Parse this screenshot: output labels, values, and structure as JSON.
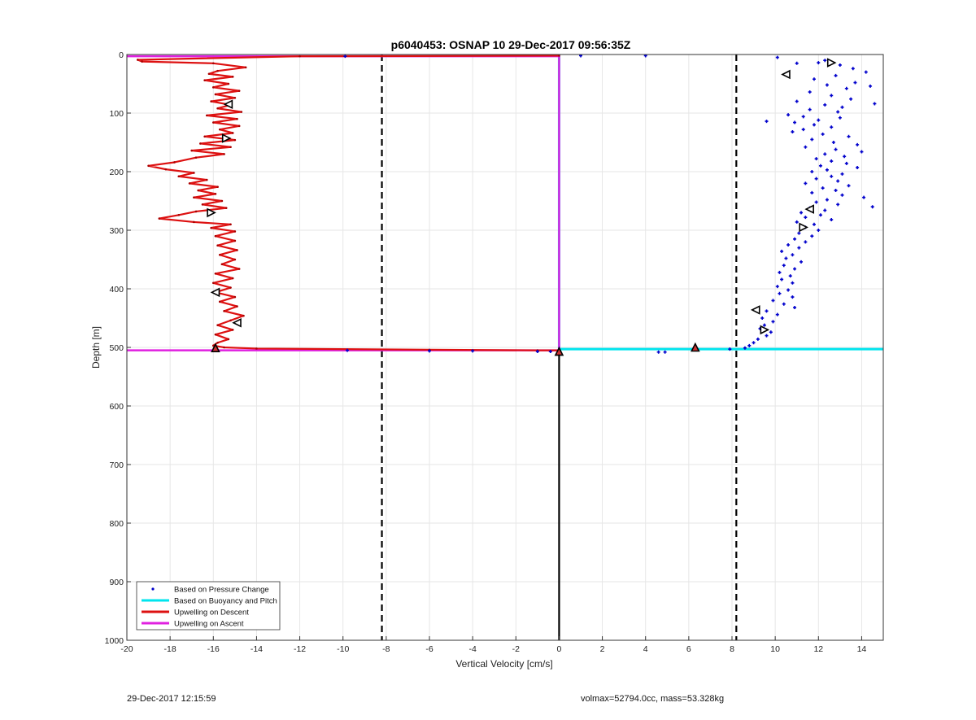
{
  "chart_data": {
    "type": "scatter",
    "title": "p6040453: OSNAP 10 29-Dec-2017 09:56:35Z",
    "xlabel": "Vertical Velocity [cm/s]",
    "ylabel": "Depth [m]",
    "xlim": [
      -20,
      15
    ],
    "ylim": [
      0,
      1000
    ],
    "y_reversed": true,
    "grid": true,
    "x_ticks": [
      -20,
      -18,
      -16,
      -14,
      -12,
      -10,
      -8,
      -6,
      -4,
      -2,
      0,
      2,
      4,
      6,
      8,
      10,
      12,
      14
    ],
    "y_ticks": [
      0,
      100,
      200,
      300,
      400,
      500,
      600,
      700,
      800,
      900,
      1000
    ],
    "legend_position": "bottom-left",
    "series": [
      {
        "name": "Based on Pressure Change",
        "kind": "points",
        "color": "#0000cc",
        "points": [
          [
            10.1,
            5
          ],
          [
            12.3,
            10
          ],
          [
            13.0,
            18
          ],
          [
            12.0,
            14
          ],
          [
            11.0,
            15
          ],
          [
            13.6,
            24
          ],
          [
            14.2,
            30
          ],
          [
            12.8,
            36
          ],
          [
            11.8,
            42
          ],
          [
            13.7,
            48
          ],
          [
            12.4,
            52
          ],
          [
            14.4,
            54
          ],
          [
            13.3,
            58
          ],
          [
            11.6,
            64
          ],
          [
            12.6,
            70
          ],
          [
            13.5,
            76
          ],
          [
            11.0,
            80
          ],
          [
            12.3,
            86
          ],
          [
            14.6,
            84
          ],
          [
            13.1,
            90
          ],
          [
            11.6,
            94
          ],
          [
            12.9,
            98
          ],
          [
            10.6,
            103
          ],
          [
            11.3,
            106
          ],
          [
            13.0,
            108
          ],
          [
            12.0,
            112
          ],
          [
            10.9,
            116
          ],
          [
            9.6,
            114
          ],
          [
            11.8,
            120
          ],
          [
            12.6,
            124
          ],
          [
            11.3,
            128
          ],
          [
            10.8,
            132
          ],
          [
            12.2,
            136
          ],
          [
            13.4,
            140
          ],
          [
            11.7,
            145
          ],
          [
            12.7,
            150
          ],
          [
            13.8,
            154
          ],
          [
            11.4,
            158
          ],
          [
            12.8,
            162
          ],
          [
            14.0,
            166
          ],
          [
            12.3,
            170
          ],
          [
            13.2,
            174
          ],
          [
            11.9,
            178
          ],
          [
            12.6,
            182
          ],
          [
            13.3,
            186
          ],
          [
            12.1,
            190
          ],
          [
            13.8,
            193
          ],
          [
            12.4,
            197
          ],
          [
            11.7,
            200
          ],
          [
            13.1,
            204
          ],
          [
            12.6,
            208
          ],
          [
            11.9,
            212
          ],
          [
            12.9,
            216
          ],
          [
            11.4,
            220
          ],
          [
            13.4,
            224
          ],
          [
            12.2,
            228
          ],
          [
            12.8,
            232
          ],
          [
            11.7,
            236
          ],
          [
            13.1,
            240
          ],
          [
            14.1,
            244
          ],
          [
            12.4,
            248
          ],
          [
            11.9,
            252
          ],
          [
            14.5,
            260
          ],
          [
            12.9,
            256
          ],
          [
            11.6,
            262
          ],
          [
            12.3,
            266
          ],
          [
            11.2,
            270
          ],
          [
            12.1,
            274
          ],
          [
            11.4,
            278
          ],
          [
            12.6,
            282
          ],
          [
            11.0,
            286
          ],
          [
            11.8,
            290
          ],
          [
            11.4,
            295
          ],
          [
            12.0,
            300
          ],
          [
            11.1,
            305
          ],
          [
            11.7,
            310
          ],
          [
            10.9,
            315
          ],
          [
            11.4,
            320
          ],
          [
            10.6,
            325
          ],
          [
            11.1,
            330
          ],
          [
            10.3,
            336
          ],
          [
            10.8,
            342
          ],
          [
            10.5,
            348
          ],
          [
            11.2,
            354
          ],
          [
            10.4,
            360
          ],
          [
            10.9,
            366
          ],
          [
            10.2,
            372
          ],
          [
            10.7,
            378
          ],
          [
            10.3,
            384
          ],
          [
            10.8,
            390
          ],
          [
            10.1,
            396
          ],
          [
            10.6,
            402
          ],
          [
            10.2,
            408
          ],
          [
            10.8,
            414
          ],
          [
            9.9,
            420
          ],
          [
            10.4,
            426
          ],
          [
            10.9,
            432
          ],
          [
            9.6,
            438
          ],
          [
            10.1,
            444
          ],
          [
            9.4,
            450
          ],
          [
            9.9,
            456
          ],
          [
            9.5,
            462
          ],
          [
            9.3,
            468
          ],
          [
            9.8,
            474
          ],
          [
            9.6,
            480
          ],
          [
            9.2,
            486
          ],
          [
            9.0,
            492
          ],
          [
            8.8,
            497
          ],
          [
            8.6,
            501
          ],
          [
            1.0,
            2
          ],
          [
            4.0,
            2
          ],
          [
            -9.9,
            3
          ],
          [
            -9.8,
            505
          ],
          [
            -6.0,
            506
          ],
          [
            -4.0,
            506
          ],
          [
            -1.0,
            507
          ],
          [
            -0.4,
            507
          ],
          [
            4.6,
            508
          ],
          [
            4.9,
            508
          ],
          [
            7.9,
            503
          ]
        ]
      },
      {
        "name": "Based on Buoyancy and Pitch",
        "kind": "line",
        "color": "#00e5ee",
        "segments": [
          [
            [
              0,
              0
            ],
            [
              0,
              503
            ]
          ],
          [
            [
              0,
              503
            ],
            [
              15,
              503
            ]
          ]
        ]
      },
      {
        "name": "Upwelling on Descent",
        "kind": "line",
        "color": "#dd1111",
        "points": [
          [
            0,
            2
          ],
          [
            -12,
            3
          ],
          [
            -19.5,
            9
          ],
          [
            -19.3,
            12
          ],
          [
            -16,
            15
          ],
          [
            -14.5,
            22
          ],
          [
            -15.8,
            28
          ],
          [
            -16.2,
            33
          ],
          [
            -15.1,
            38
          ],
          [
            -16.4,
            44
          ],
          [
            -15.3,
            50
          ],
          [
            -16.0,
            56
          ],
          [
            -14.8,
            62
          ],
          [
            -15.9,
            68
          ],
          [
            -15.0,
            74
          ],
          [
            -16.1,
            80
          ],
          [
            -15.2,
            86
          ],
          [
            -15.8,
            92
          ],
          [
            -14.7,
            98
          ],
          [
            -16.3,
            104
          ],
          [
            -14.9,
            110
          ],
          [
            -16.0,
            116
          ],
          [
            -14.8,
            122
          ],
          [
            -15.7,
            128
          ],
          [
            -15.1,
            134
          ],
          [
            -16.4,
            140
          ],
          [
            -15.0,
            146
          ],
          [
            -16.6,
            152
          ],
          [
            -15.2,
            158
          ],
          [
            -17.0,
            164
          ],
          [
            -15.5,
            170
          ],
          [
            -16.8,
            176
          ],
          [
            -17.8,
            184
          ],
          [
            -19.0,
            190
          ],
          [
            -18.2,
            196
          ],
          [
            -16.9,
            202
          ],
          [
            -17.6,
            208
          ],
          [
            -16.3,
            214
          ],
          [
            -17.1,
            220
          ],
          [
            -15.8,
            226
          ],
          [
            -16.7,
            232
          ],
          [
            -15.9,
            238
          ],
          [
            -16.9,
            244
          ],
          [
            -15.6,
            250
          ],
          [
            -16.5,
            256
          ],
          [
            -15.4,
            262
          ],
          [
            -16.8,
            268
          ],
          [
            -17.6,
            274
          ],
          [
            -18.5,
            280
          ],
          [
            -16.9,
            286
          ],
          [
            -15.2,
            290
          ],
          [
            -16.1,
            296
          ],
          [
            -15.0,
            302
          ],
          [
            -15.9,
            310
          ],
          [
            -15.0,
            318
          ],
          [
            -15.8,
            326
          ],
          [
            -14.9,
            334
          ],
          [
            -15.7,
            342
          ],
          [
            -15.0,
            350
          ],
          [
            -15.6,
            358
          ],
          [
            -14.8,
            366
          ],
          [
            -15.9,
            374
          ],
          [
            -15.1,
            382
          ],
          [
            -16.0,
            390
          ],
          [
            -15.2,
            398
          ],
          [
            -15.9,
            406
          ],
          [
            -15.0,
            414
          ],
          [
            -15.7,
            422
          ],
          [
            -14.9,
            430
          ],
          [
            -15.5,
            438
          ],
          [
            -14.6,
            446
          ],
          [
            -15.2,
            454
          ],
          [
            -15.8,
            462
          ],
          [
            -15.1,
            470
          ],
          [
            -15.9,
            478
          ],
          [
            -15.3,
            486
          ],
          [
            -15.8,
            492
          ],
          [
            -16.0,
            497
          ],
          [
            -15.5,
            500
          ],
          [
            -14.0,
            502
          ],
          [
            -6.0,
            504
          ],
          [
            -1.0,
            505
          ],
          [
            0,
            505
          ]
        ]
      },
      {
        "name": "Upwelling on Ascent",
        "kind": "line",
        "color": "#e020e0",
        "points": [
          [
            -20,
            505
          ],
          [
            0,
            505
          ],
          [
            0,
            3
          ],
          [
            -20,
            3
          ]
        ]
      }
    ],
    "triangle_markers": [
      {
        "x": 12.6,
        "y": 14,
        "dir": "right"
      },
      {
        "x": 10.5,
        "y": 34,
        "dir": "left"
      },
      {
        "x": -15.3,
        "y": 85,
        "dir": "left"
      },
      {
        "x": -15.4,
        "y": 143,
        "dir": "right"
      },
      {
        "x": -16.1,
        "y": 270,
        "dir": "right"
      },
      {
        "x": -15.9,
        "y": 406,
        "dir": "left"
      },
      {
        "x": -14.9,
        "y": 458,
        "dir": "left"
      },
      {
        "x": 11.6,
        "y": 264,
        "dir": "left"
      },
      {
        "x": 11.3,
        "y": 295,
        "dir": "right"
      },
      {
        "x": 9.1,
        "y": 436,
        "dir": "left"
      },
      {
        "x": 9.5,
        "y": 470,
        "dir": "right"
      },
      {
        "x": -15.9,
        "y": 501,
        "dir": "up"
      },
      {
        "x": 6.3,
        "y": 500,
        "dir": "up"
      },
      {
        "x": 0,
        "y": 507,
        "dir": "up"
      }
    ],
    "reference_lines": [
      {
        "x": -8.2,
        "style": "dashed",
        "color": "#000000"
      },
      {
        "x": 8.2,
        "style": "dashed",
        "color": "#000000"
      },
      {
        "x": 0,
        "y_from": 507,
        "y_to": 1000,
        "style": "solid",
        "color": "#000000"
      }
    ]
  },
  "footer": {
    "left": "29-Dec-2017 12:15:59",
    "right": "volmax=52794.0cc, mass=53.328kg"
  }
}
